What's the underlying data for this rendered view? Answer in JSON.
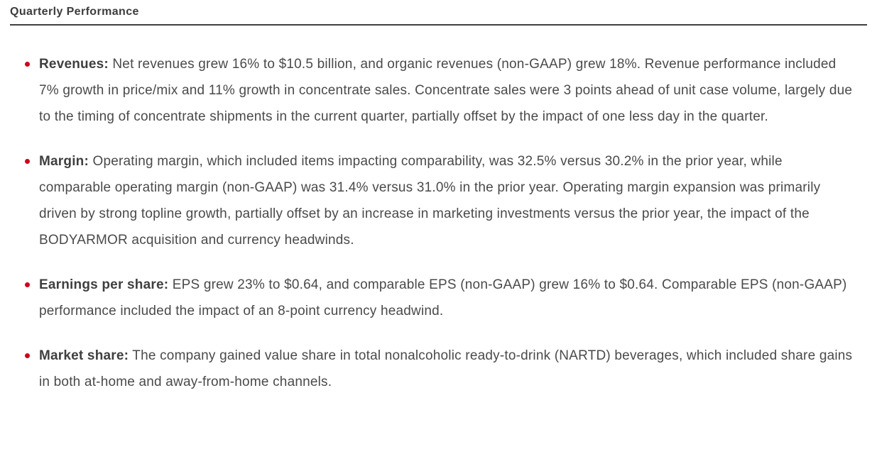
{
  "colors": {
    "accent": "#d0021b",
    "text": "#4a4a4a",
    "heading": "#3c3c3c",
    "rule": "#3f3f3f",
    "bg": "#ffffff"
  },
  "section": {
    "title": "Quarterly Performance"
  },
  "bullets": [
    {
      "label": "Revenues:",
      "text": " Net revenues grew 16% to $10.5 billion, and organic revenues (non-GAAP) grew 18%. Revenue performance included 7% growth in price/mix and 11% growth in concentrate sales. Concentrate sales were 3 points ahead of unit case volume, largely due to the timing of concentrate shipments in the current quarter, partially offset by the impact of one less day in the quarter."
    },
    {
      "label": "Margin:",
      "text": " Operating margin, which included items impacting comparability, was 32.5% versus 30.2% in the prior year, while comparable operating margin (non-GAAP) was 31.4% versus 31.0% in the prior year. Operating margin expansion was primarily driven by strong topline growth, partially offset by an increase in marketing investments versus the prior year, the impact of the BODYARMOR acquisition and currency headwinds."
    },
    {
      "label": "Earnings per share:",
      "text": " EPS grew 23% to $0.64, and comparable EPS (non-GAAP) grew 16% to $0.64. Comparable EPS (non-GAAP) performance included the impact of an 8-point currency headwind."
    },
    {
      "label": "Market share:",
      "text": " The company gained value share in total nonalcoholic ready-to-drink (NARTD) beverages, which included share gains in both at-home and away-from-home channels."
    }
  ]
}
